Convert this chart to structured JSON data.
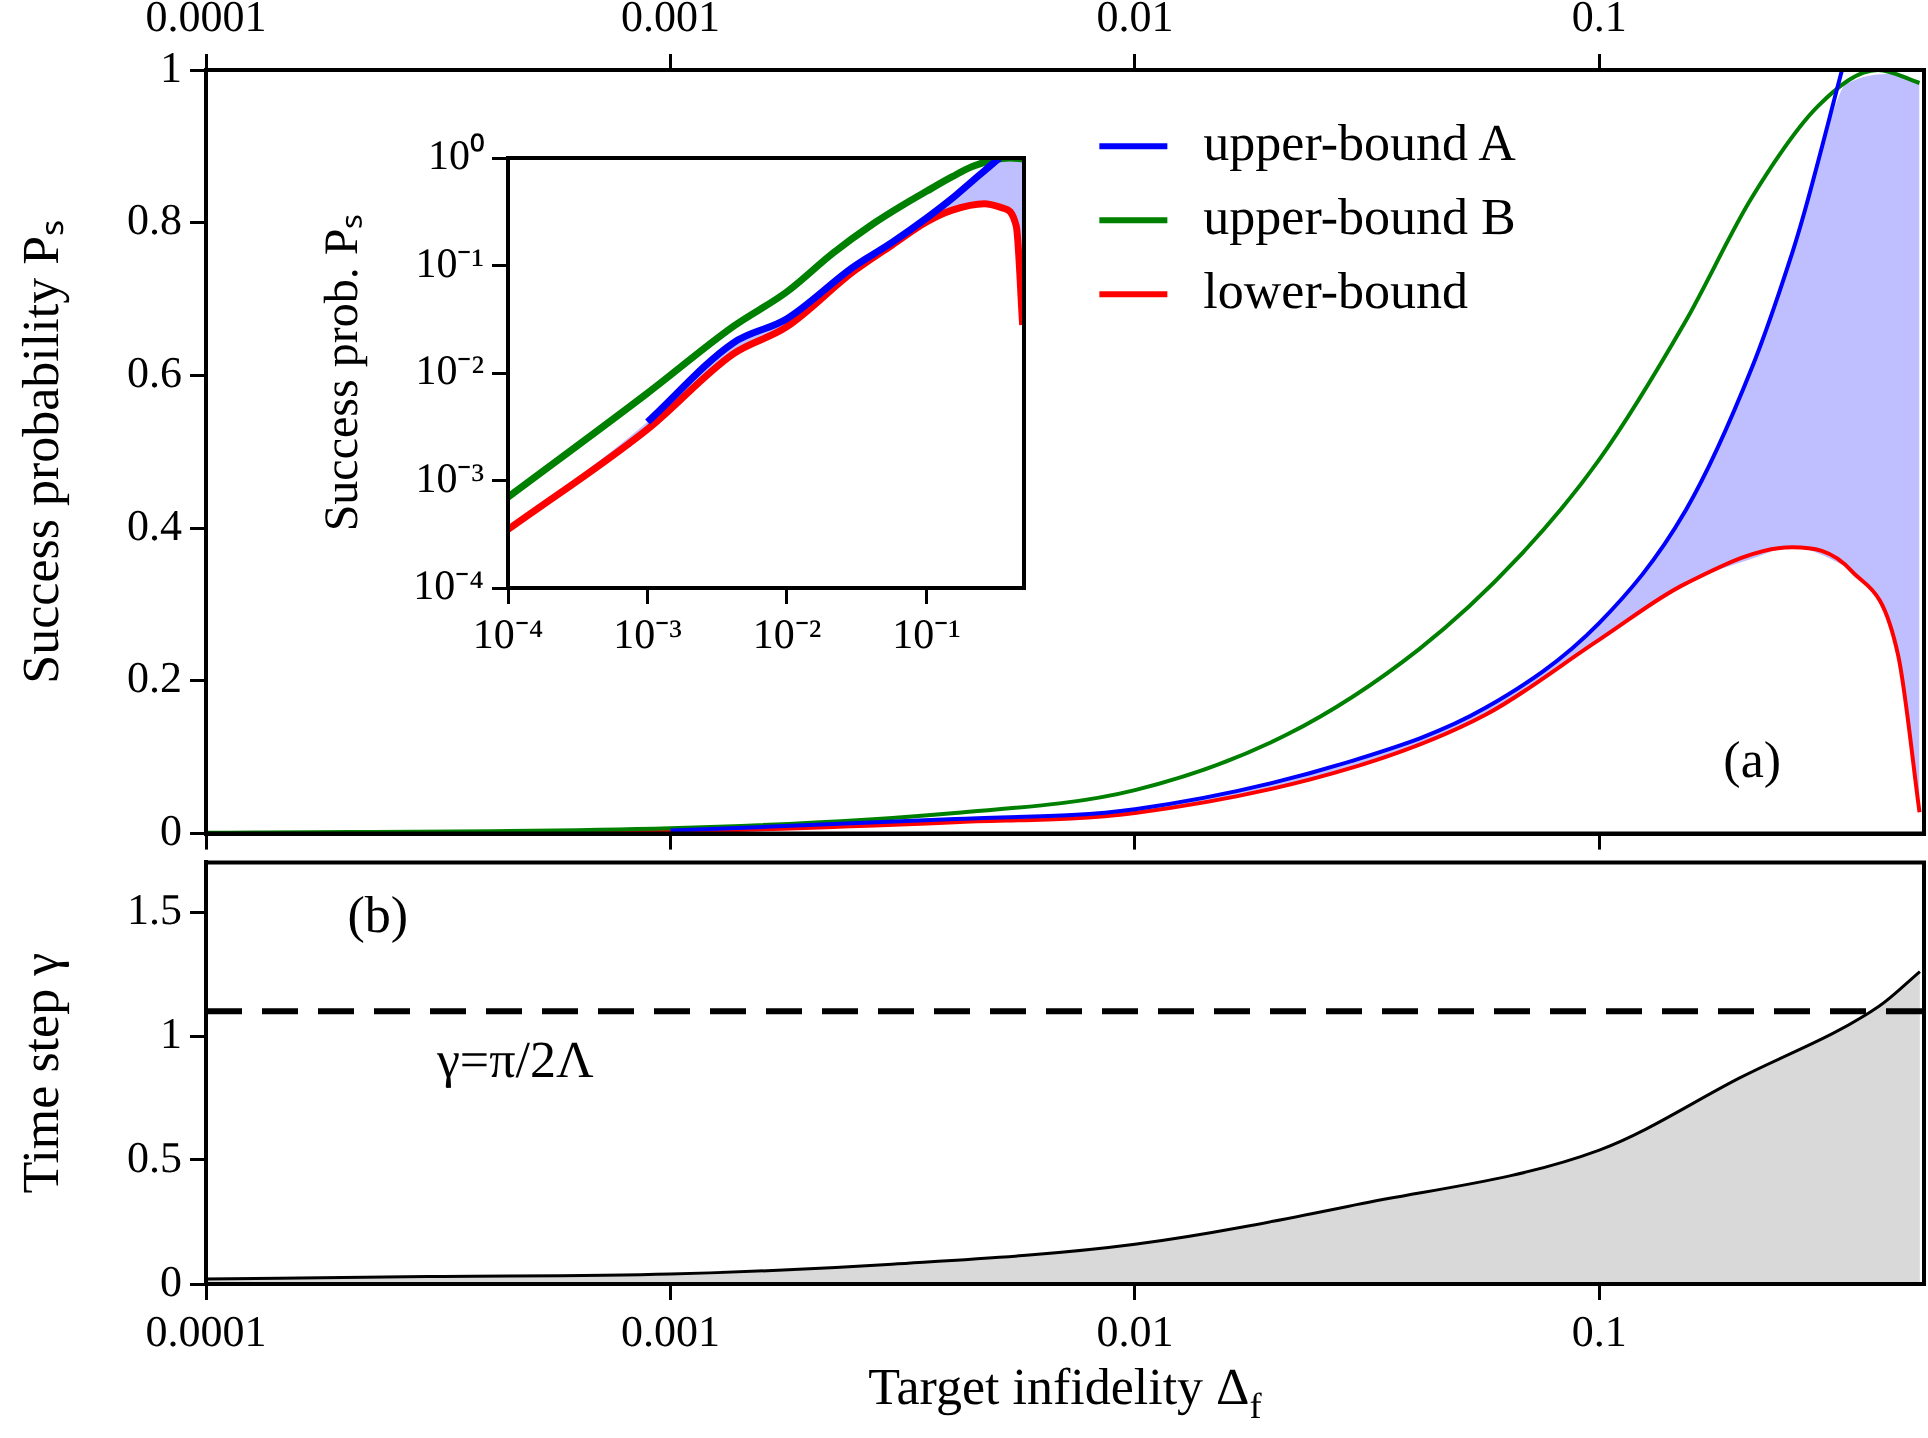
{
  "chart_data": [
    {
      "type": "line",
      "ylabel": "Success probability Pₛ",
      "log": "x",
      "xlim": [
        0.0001,
        0.5
      ],
      "xticks": [
        0.0001,
        0.001,
        0.01,
        0.1
      ],
      "ylim": [
        0,
        1
      ],
      "yticks": [
        0,
        0.2,
        0.4,
        0.6,
        0.8,
        1
      ],
      "legend": "top right",
      "annotations": [
        "(a)"
      ],
      "series": [
        {
          "name": "upper-bound A",
          "color": "#0000ff",
          "x": [
            0.0001,
            0.001,
            0.0041,
            0.01,
            0.0296,
            0.057,
            0.1,
            0.153,
            0.213,
            0.26,
            0.277,
            0.333,
            0.349,
            0.44,
            0.489
          ],
          "values": [
            null,
            0.004,
            0.019,
            0.032,
            0.096,
            0.165,
            0.276,
            0.422,
            0.61,
            0.76,
            0.816,
            1.0,
            null,
            null,
            null
          ],
          "lower": [
            0,
            0.003,
            0.015,
            0.027,
            0.087,
            0.156,
            0.254,
            0.327,
            0.36,
            0.375,
            0.373,
            0.352,
            0.344,
            0.233,
            0.028
          ],
          "upper": [
            0,
            0.004,
            0.019,
            0.032,
            0.096,
            0.165,
            0.276,
            0.422,
            0.61,
            0.76,
            0.816,
            0.975,
            0.985,
            0.995,
            0.983
          ]
        },
        {
          "name": "upper-bound B",
          "color": "#008000",
          "x": [
            0.0001,
            0.001,
            0.0041,
            0.01,
            0.0213,
            0.041,
            0.067,
            0.1,
            0.153,
            0.213,
            0.296,
            0.398,
            0.489
          ],
          "values": [
            0.001,
            0.007,
            0.027,
            0.057,
            0.13,
            0.242,
            0.362,
            0.49,
            0.67,
            0.833,
            0.953,
            1.0,
            0.983
          ]
        },
        {
          "name": "lower-bound",
          "color": "#ff0000",
          "x": [
            0.0001,
            0.001,
            0.0041,
            0.01,
            0.0296,
            0.057,
            0.1,
            0.153,
            0.26,
            0.349,
            0.44,
            0.489
          ],
          "values": [
            0,
            0.003,
            0.015,
            0.027,
            0.087,
            0.156,
            0.254,
            0.327,
            0.375,
            0.344,
            0.233,
            0.028
          ]
        }
      ]
    },
    {
      "type": "line",
      "ylabel": "Success prob. Pₛ",
      "log": "xy",
      "xlim": [
        0.0001,
        0.5
      ],
      "xticks": [
        {
          "value": 0.0001,
          "label": "10⁻⁴"
        },
        {
          "value": 0.001,
          "label": "10⁻³"
        },
        {
          "value": 0.01,
          "label": "10⁻²"
        },
        {
          "value": 0.1,
          "label": "10⁻¹"
        }
      ],
      "ylim": [
        0.0001,
        1
      ],
      "yticks": [
        {
          "value": 0.0001,
          "label": "10⁻⁴"
        },
        {
          "value": 0.001,
          "label": "10⁻³"
        },
        {
          "value": 0.01,
          "label": "10⁻²"
        },
        {
          "value": 0.1,
          "label": "10⁻¹"
        },
        {
          "value": 1,
          "label": "10⁰"
        }
      ],
      "series": [
        {
          "color": "#0000ff",
          "x": [
            0.0001,
            0.001,
            0.0041,
            0.01,
            0.0296,
            0.057,
            0.1,
            0.153,
            0.213,
            0.26,
            0.277,
            0.333,
            0.349,
            0.44,
            0.489
          ],
          "values": [
            null,
            0.0035,
            0.019,
            0.032,
            0.096,
            0.165,
            0.276,
            0.422,
            0.61,
            0.76,
            0.816,
            1.0,
            null,
            null,
            null
          ],
          "lower": [
            0.00035,
            0.003,
            0.015,
            0.027,
            0.087,
            0.156,
            0.254,
            0.327,
            0.36,
            0.375,
            0.373,
            0.352,
            0.344,
            0.233,
            0.028
          ],
          "upper": [
            0.00035,
            0.0035,
            0.019,
            0.032,
            0.096,
            0.165,
            0.276,
            0.422,
            0.61,
            0.76,
            0.816,
            0.975,
            0.985,
            0.995,
            0.983
          ]
        },
        {
          "color": "#008000",
          "x": [
            0.0001,
            0.001,
            0.0041,
            0.01,
            0.0213,
            0.041,
            0.067,
            0.1,
            0.153,
            0.213,
            0.296,
            0.398,
            0.489
          ],
          "values": [
            0.0007,
            0.0065,
            0.027,
            0.057,
            0.13,
            0.242,
            0.362,
            0.49,
            0.67,
            0.833,
            0.953,
            1.0,
            0.983
          ]
        },
        {
          "color": "#ff0000",
          "x": [
            0.0001,
            0.001,
            0.0041,
            0.01,
            0.0296,
            0.057,
            0.1,
            0.153,
            0.26,
            0.349,
            0.44,
            0.489
          ],
          "values": [
            0.00035,
            0.003,
            0.015,
            0.027,
            0.087,
            0.156,
            0.254,
            0.327,
            0.375,
            0.344,
            0.233,
            0.028
          ]
        }
      ]
    },
    {
      "type": "area",
      "xlabel": "Target infidelity Δ$_{f}$",
      "ylabel": "Time step γ",
      "log": "x",
      "xlim": [
        0.0001,
        0.5
      ],
      "xticks": [
        0.0001,
        0.001,
        0.01,
        0.1
      ],
      "ylim": [
        0,
        1.7
      ],
      "yticks": [
        0,
        0.5,
        1,
        1.5
      ],
      "annotations": [
        "(b)"
      ],
      "ref_lines": [
        {
          "axis": "y",
          "value": 1.1,
          "label": "γ=π/2Λ",
          "line_style": "dashed",
          "color": "#000000"
        }
      ],
      "series": [
        {
          "color": "#000000",
          "x": [
            0.0001,
            0.0003,
            0.001,
            0.003,
            0.01,
            0.03,
            0.1,
            0.2,
            0.4,
            0.49
          ],
          "values": [
            0.02,
            0.03,
            0.04,
            0.08,
            0.16,
            0.32,
            0.54,
            0.83,
            1.12,
            1.26
          ]
        }
      ]
    }
  ]
}
